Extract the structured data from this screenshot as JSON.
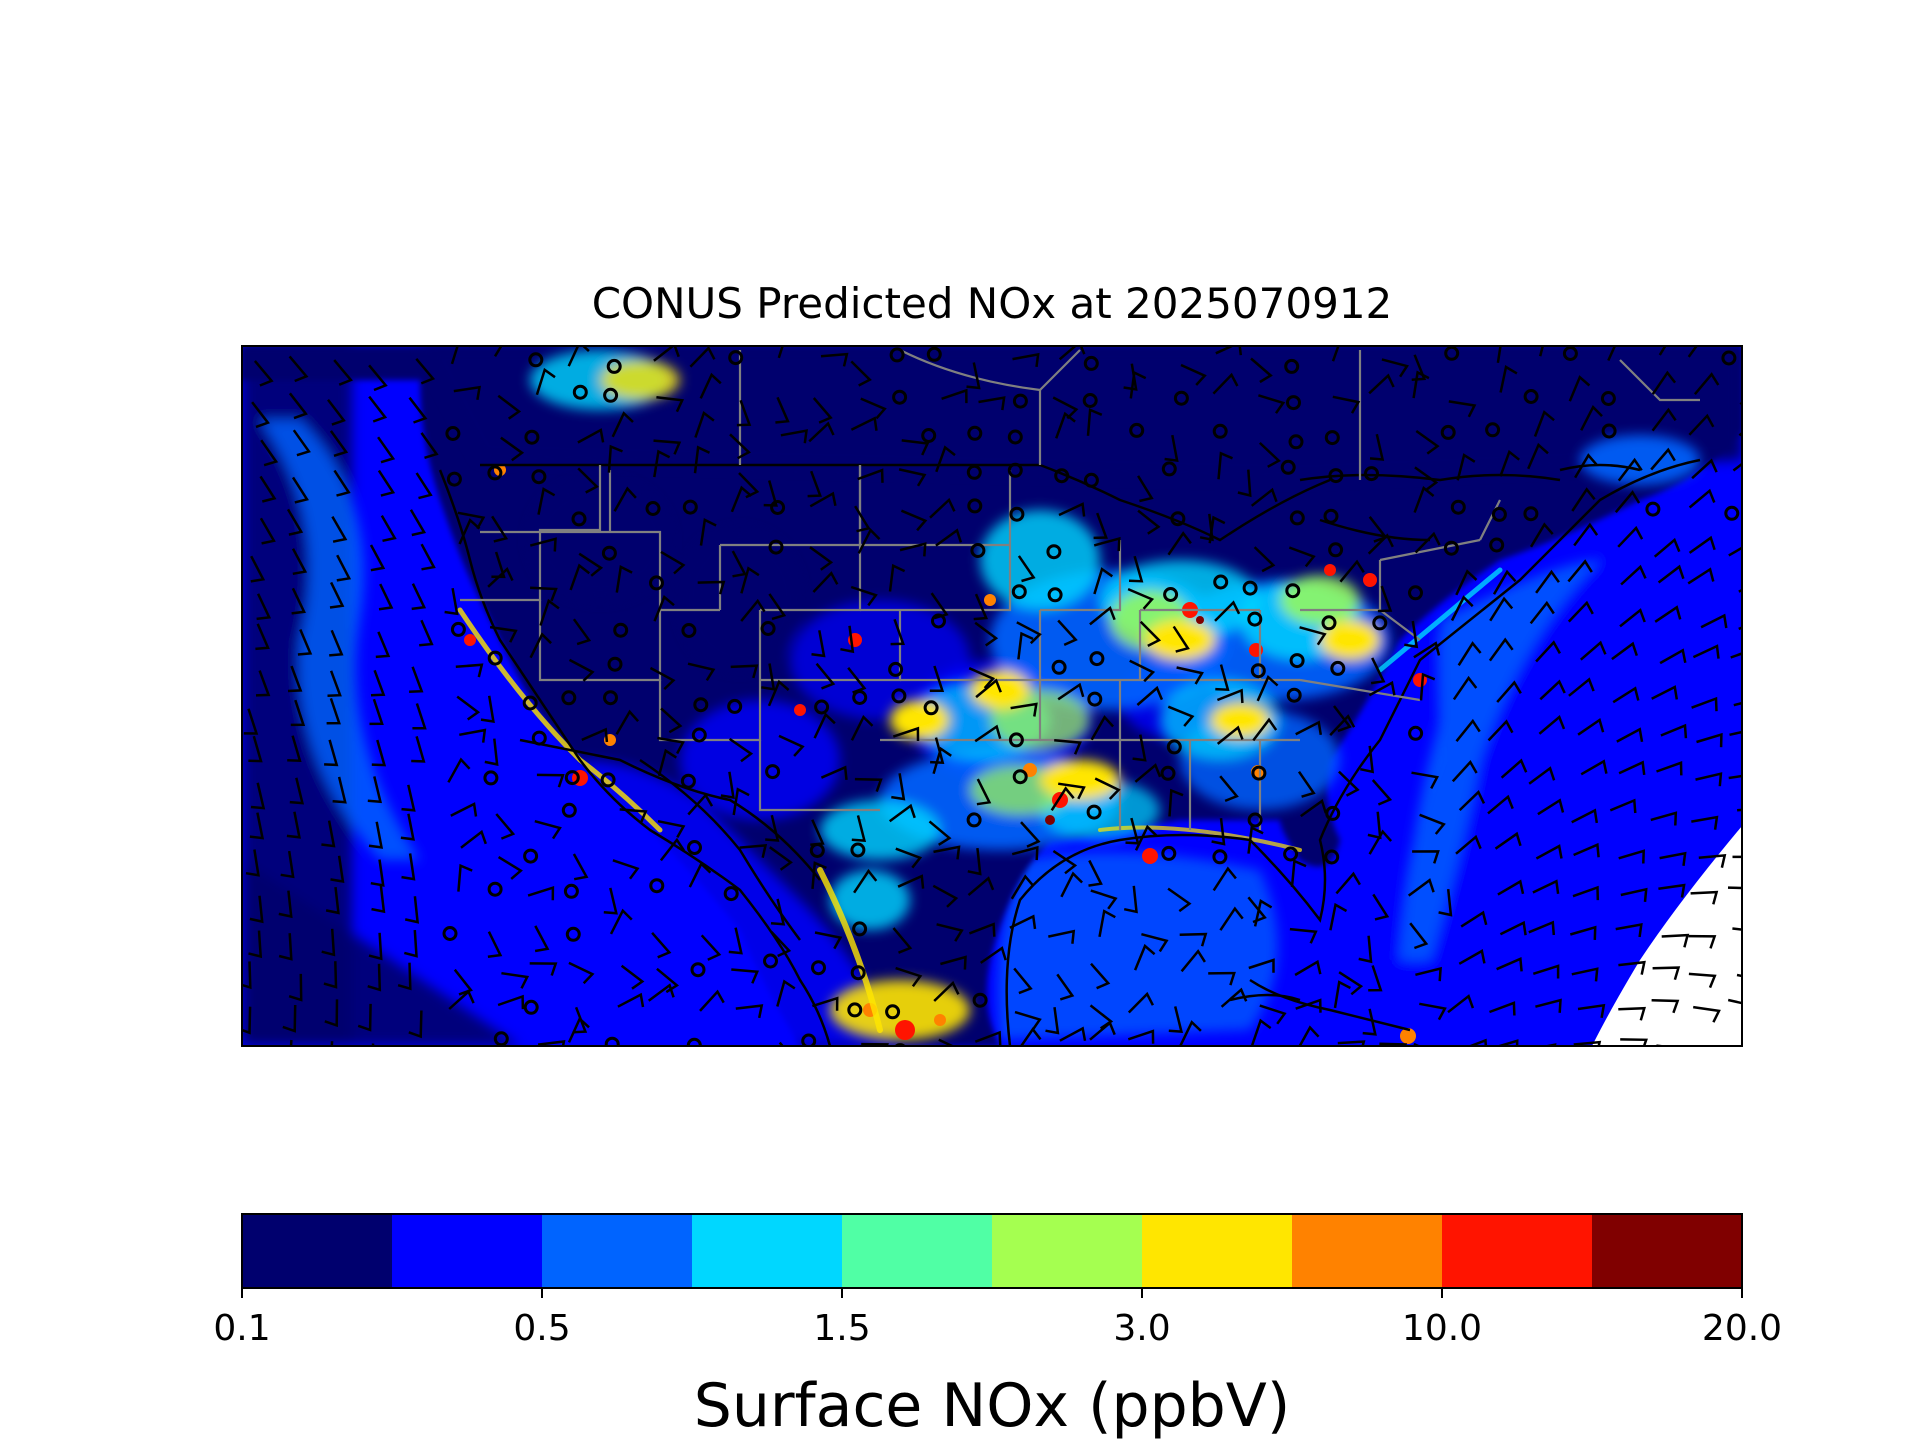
{
  "title": "CONUS Predicted NOx at 2025070912",
  "colorbar": {
    "label": "Surface NOx (ppbV)",
    "tick_labels": [
      "0.1",
      "0.5",
      "1.5",
      "3.0",
      "10.0",
      "20.0"
    ],
    "colors": [
      "#00006e",
      "#0000ff",
      "#0064ff",
      "#00d7ff",
      "#50ffa5",
      "#a5ff50",
      "#ffe600",
      "#ff8200",
      "#ff1400",
      "#800000"
    ]
  },
  "map": {
    "field": "Surface NOx",
    "units": "ppbV",
    "overlays": [
      "state-borders",
      "coastlines",
      "wind-barbs",
      "calm-wind-circles"
    ]
  }
}
